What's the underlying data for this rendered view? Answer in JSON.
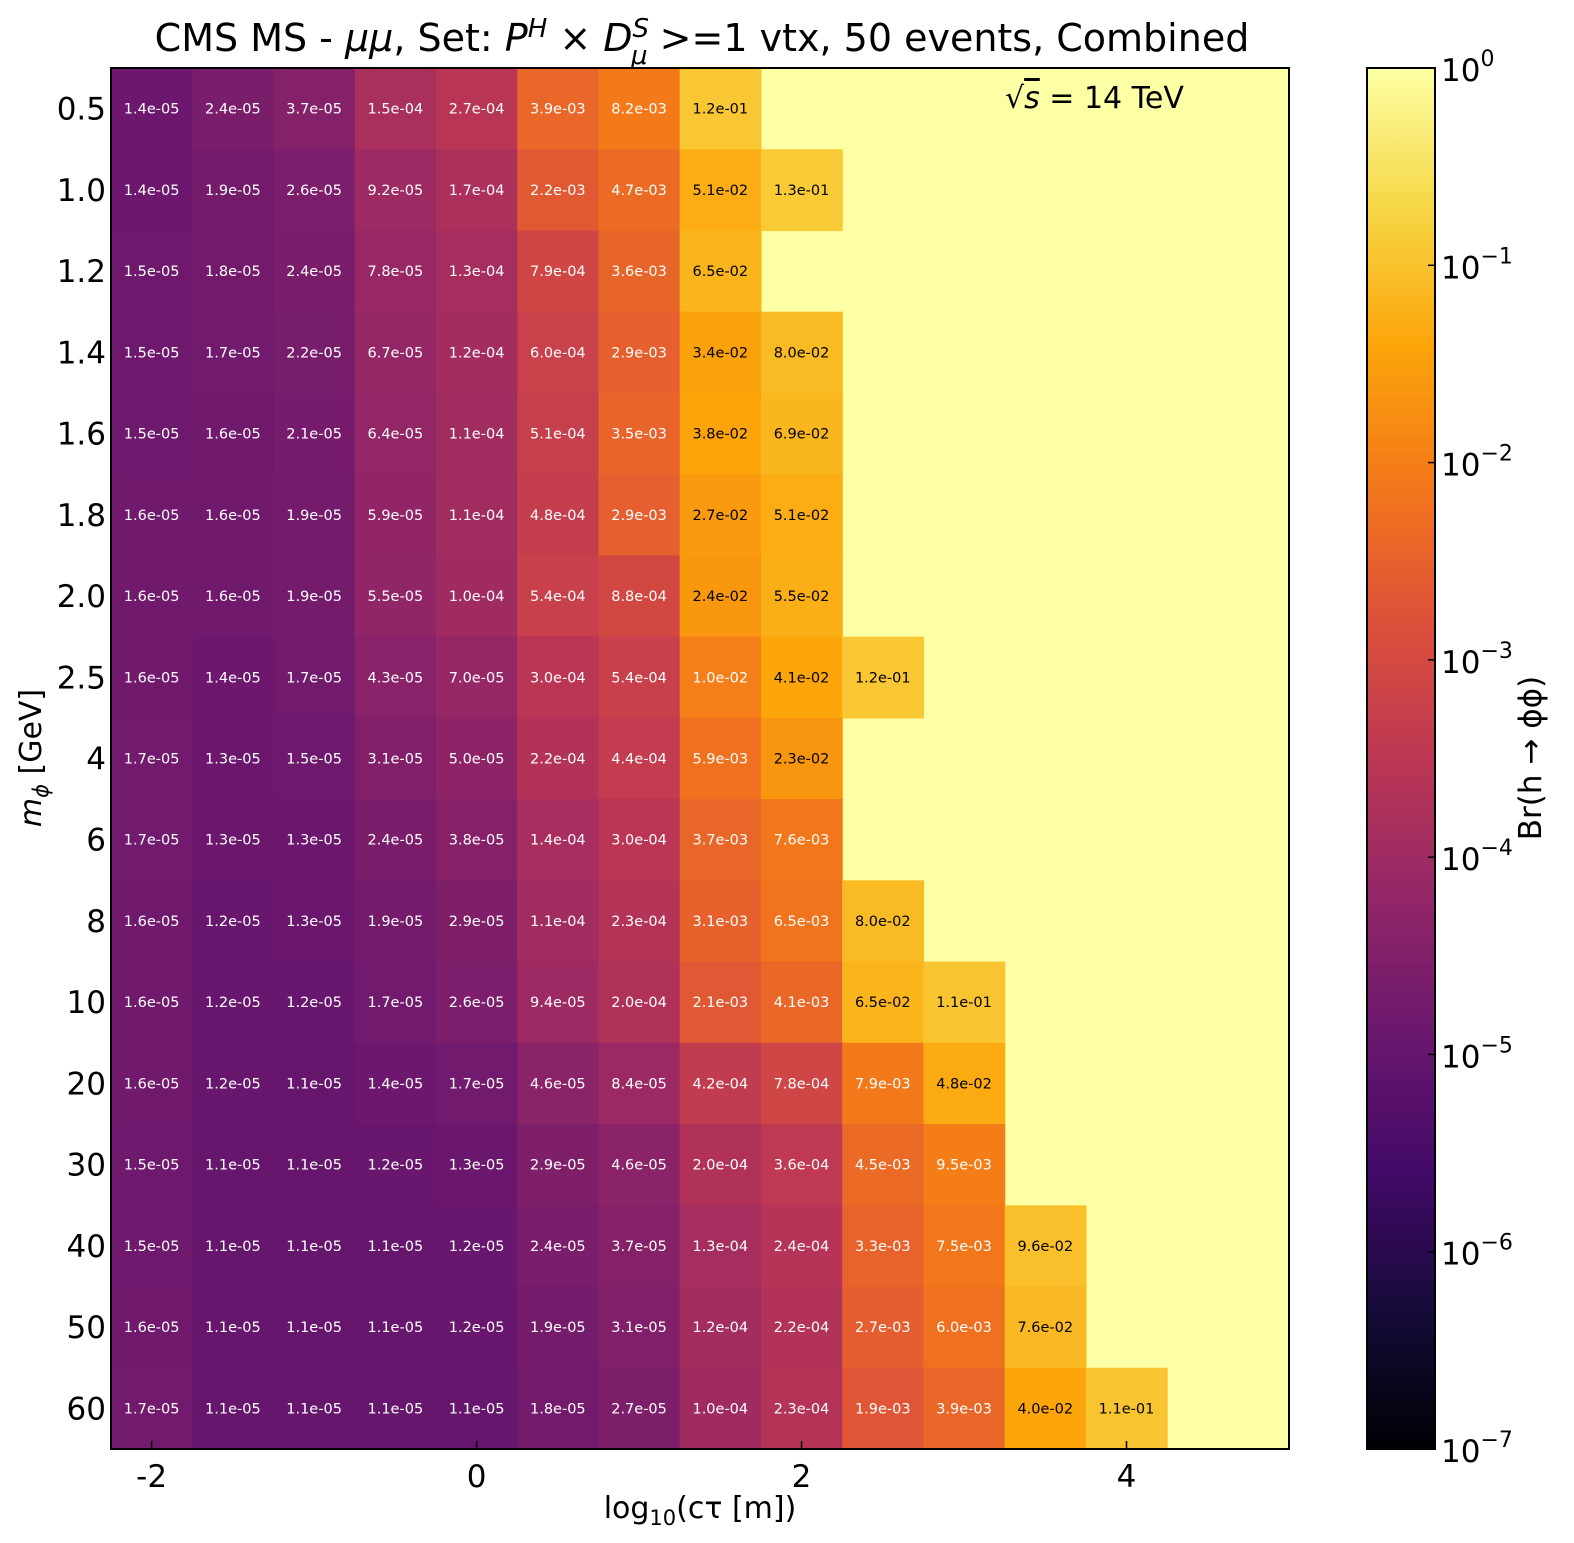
{
  "chart_data": {
    "type": "heatmap",
    "title": "CMS MS - μμ, Set: P^H × D_μ^S >=1 vtx, 50 events, Combined",
    "title_parts": {
      "prefix": "CMS MS - ",
      "mumu": "μμ",
      "set": ", Set: ",
      "P": "P",
      "H": "H",
      "times": " × ",
      "D": "D",
      "mu": "μ",
      "S": "S",
      "suffix": " >=1 vtx, 50 events, Combined"
    },
    "annotation": {
      "sqrt": "√",
      "s": "s",
      "rest": " = 14 TeV"
    },
    "xlabel": {
      "pre": "log",
      "sub": "10",
      "post": "(cτ [m])"
    },
    "ylabel": {
      "m": "m",
      "sub": "ϕ",
      "post": " [GeV]"
    },
    "colorbar": {
      "label": "Br(h → ϕϕ)",
      "scale": "log",
      "range": [
        1e-07,
        1
      ],
      "ticks": [
        {
          "base": "10",
          "exp": "0",
          "value": 1
        },
        {
          "base": "10",
          "exp": "−1",
          "value": 0.1
        },
        {
          "base": "10",
          "exp": "−2",
          "value": 0.01
        },
        {
          "base": "10",
          "exp": "−3",
          "value": 0.001
        },
        {
          "base": "10",
          "exp": "−4",
          "value": 0.0001
        },
        {
          "base": "10",
          "exp": "−5",
          "value": 1e-05
        },
        {
          "base": "10",
          "exp": "−6",
          "value": 1e-06
        },
        {
          "base": "10",
          "exp": "−7",
          "value": 1e-07
        }
      ]
    },
    "x_ticks": [
      {
        "label": "-2",
        "value": -2
      },
      {
        "label": "0",
        "value": 0
      },
      {
        "label": "2",
        "value": 2
      },
      {
        "label": "4",
        "value": 4
      }
    ],
    "x_range": [
      -2.25,
      5.0
    ],
    "x_values": [
      -2.0,
      -1.5,
      -1.0,
      -0.5,
      0.0,
      0.5,
      1.0,
      1.5,
      2.0,
      2.5,
      3.0,
      3.5,
      4.0
    ],
    "y_labels": [
      "0.5",
      "1.0",
      "1.2",
      "1.4",
      "1.6",
      "1.8",
      "2.0",
      "2.5",
      "4",
      "6",
      "8",
      "10",
      "20",
      "30",
      "40",
      "50",
      "60"
    ],
    "values": [
      [
        "1.4e-05",
        "2.4e-05",
        "3.7e-05",
        "1.5e-04",
        "2.7e-04",
        "3.9e-03",
        "8.2e-03",
        "1.2e-01",
        null,
        null,
        null,
        null,
        null
      ],
      [
        "1.4e-05",
        "1.9e-05",
        "2.6e-05",
        "9.2e-05",
        "1.7e-04",
        "2.2e-03",
        "4.7e-03",
        "5.1e-02",
        "1.3e-01",
        null,
        null,
        null,
        null
      ],
      [
        "1.5e-05",
        "1.8e-05",
        "2.4e-05",
        "7.8e-05",
        "1.3e-04",
        "7.9e-04",
        "3.6e-03",
        "6.5e-02",
        null,
        null,
        null,
        null,
        null
      ],
      [
        "1.5e-05",
        "1.7e-05",
        "2.2e-05",
        "6.7e-05",
        "1.2e-04",
        "6.0e-04",
        "2.9e-03",
        "3.4e-02",
        "8.0e-02",
        null,
        null,
        null,
        null
      ],
      [
        "1.5e-05",
        "1.6e-05",
        "2.1e-05",
        "6.4e-05",
        "1.1e-04",
        "5.1e-04",
        "3.5e-03",
        "3.8e-02",
        "6.9e-02",
        null,
        null,
        null,
        null
      ],
      [
        "1.6e-05",
        "1.6e-05",
        "1.9e-05",
        "5.9e-05",
        "1.1e-04",
        "4.8e-04",
        "2.9e-03",
        "2.7e-02",
        "5.1e-02",
        null,
        null,
        null,
        null
      ],
      [
        "1.6e-05",
        "1.6e-05",
        "1.9e-05",
        "5.5e-05",
        "1.0e-04",
        "5.4e-04",
        "8.8e-04",
        "2.4e-02",
        "5.5e-02",
        null,
        null,
        null,
        null
      ],
      [
        "1.6e-05",
        "1.4e-05",
        "1.7e-05",
        "4.3e-05",
        "7.0e-05",
        "3.0e-04",
        "5.4e-04",
        "1.0e-02",
        "4.1e-02",
        "1.2e-01",
        null,
        null,
        null
      ],
      [
        "1.7e-05",
        "1.3e-05",
        "1.5e-05",
        "3.1e-05",
        "5.0e-05",
        "2.2e-04",
        "4.4e-04",
        "5.9e-03",
        "2.3e-02",
        null,
        null,
        null,
        null
      ],
      [
        "1.7e-05",
        "1.3e-05",
        "1.3e-05",
        "2.4e-05",
        "3.8e-05",
        "1.4e-04",
        "3.0e-04",
        "3.7e-03",
        "7.6e-03",
        null,
        null,
        null,
        null
      ],
      [
        "1.6e-05",
        "1.2e-05",
        "1.3e-05",
        "1.9e-05",
        "2.9e-05",
        "1.1e-04",
        "2.3e-04",
        "3.1e-03",
        "6.5e-03",
        "8.0e-02",
        null,
        null,
        null
      ],
      [
        "1.6e-05",
        "1.2e-05",
        "1.2e-05",
        "1.7e-05",
        "2.6e-05",
        "9.4e-05",
        "2.0e-04",
        "2.1e-03",
        "4.1e-03",
        "6.5e-02",
        "1.1e-01",
        null,
        null
      ],
      [
        "1.6e-05",
        "1.2e-05",
        "1.1e-05",
        "1.4e-05",
        "1.7e-05",
        "4.6e-05",
        "8.4e-05",
        "4.2e-04",
        "7.8e-04",
        "7.9e-03",
        "4.8e-02",
        null,
        null
      ],
      [
        "1.5e-05",
        "1.1e-05",
        "1.1e-05",
        "1.2e-05",
        "1.3e-05",
        "2.9e-05",
        "4.6e-05",
        "2.0e-04",
        "3.6e-04",
        "4.5e-03",
        "9.5e-03",
        null,
        null
      ],
      [
        "1.5e-05",
        "1.1e-05",
        "1.1e-05",
        "1.1e-05",
        "1.2e-05",
        "2.4e-05",
        "3.7e-05",
        "1.3e-04",
        "2.4e-04",
        "3.3e-03",
        "7.5e-03",
        "9.6e-02",
        null
      ],
      [
        "1.6e-05",
        "1.1e-05",
        "1.1e-05",
        "1.1e-05",
        "1.2e-05",
        "1.9e-05",
        "3.1e-05",
        "1.2e-04",
        "2.2e-04",
        "2.7e-03",
        "6.0e-03",
        "7.6e-02",
        null
      ],
      [
        "1.7e-05",
        "1.1e-05",
        "1.1e-05",
        "1.1e-05",
        "1.1e-05",
        "1.8e-05",
        "2.7e-05",
        "1.0e-04",
        "2.3e-04",
        "1.9e-03",
        "3.9e-03",
        "4.0e-02",
        "1.1e-01"
      ]
    ],
    "empty_value": 1,
    "colormap": "inferno",
    "grid": false,
    "legend": "none"
  }
}
